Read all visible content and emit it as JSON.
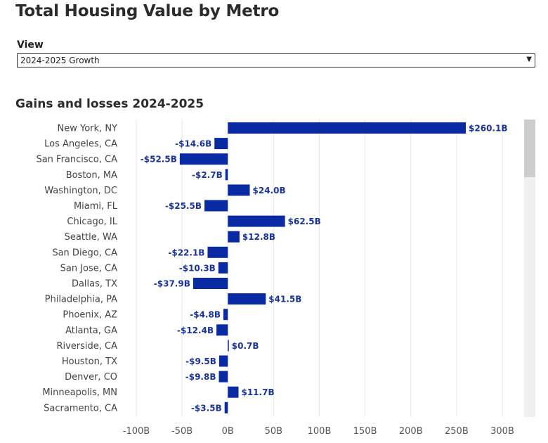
{
  "header": {
    "title": "Total Housing Value by Metro"
  },
  "view": {
    "label": "View",
    "selected": "2024-2025 Growth"
  },
  "colors": {
    "bar": "#0a2aa3",
    "value_label": "#1a3399",
    "grid": "#e6e6e6"
  },
  "chart_data": {
    "type": "bar",
    "orientation": "horizontal",
    "title": "Gains and losses 2024-2025",
    "xlabel": "",
    "ylabel": "",
    "xlim": [
      -100,
      300
    ],
    "x_ticks": [
      -100,
      -50,
      0,
      50,
      100,
      150,
      200,
      250,
      300
    ],
    "x_tick_labels": [
      "-100B",
      "-50B",
      "0B",
      "50B",
      "100B",
      "150B",
      "200B",
      "250B",
      "300B"
    ],
    "grid": true,
    "categories": [
      "New York, NY",
      "Los Angeles, CA",
      "San Francisco, CA",
      "Boston, MA",
      "Washington, DC",
      "Miami, FL",
      "Chicago, IL",
      "Seattle, WA",
      "San Diego, CA",
      "San Jose, CA",
      "Dallas, TX",
      "Philadelphia, PA",
      "Phoenix, AZ",
      "Atlanta, GA",
      "Riverside, CA",
      "Houston, TX",
      "Denver, CO",
      "Minneapolis, MN",
      "Sacramento, CA"
    ],
    "values": [
      260.1,
      -14.6,
      -52.5,
      -2.7,
      24.0,
      -25.5,
      62.5,
      12.8,
      -22.1,
      -10.3,
      -37.9,
      41.5,
      -4.8,
      -12.4,
      0.7,
      -9.5,
      -9.8,
      11.7,
      -3.5
    ],
    "value_labels": [
      "$260.1B",
      "-$14.6B",
      "-$52.5B",
      "-$2.7B",
      "$24.0B",
      "-$25.5B",
      "$62.5B",
      "$12.8B",
      "-$22.1B",
      "-$10.3B",
      "-$37.9B",
      "$41.5B",
      "-$4.8B",
      "-$12.4B",
      "$0.7B",
      "-$9.5B",
      "-$9.8B",
      "$11.7B",
      "-$3.5B"
    ]
  }
}
